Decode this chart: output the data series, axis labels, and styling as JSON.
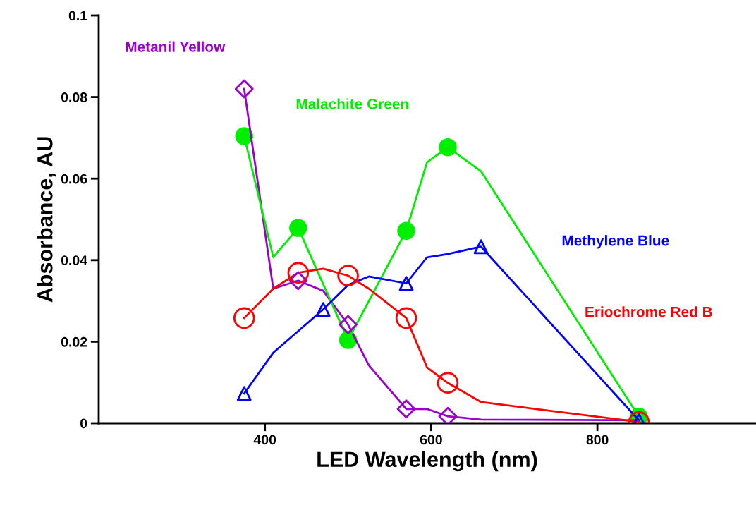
{
  "chart_data": {
    "type": "line",
    "xlabel": "LED Wavelength (nm)",
    "ylabel": "Absorbance, AU",
    "xlim": [
      200,
      990
    ],
    "ylim": [
      0,
      0.1
    ],
    "xticks": [
      400,
      600,
      800
    ],
    "yticks": [
      {
        "value": 0,
        "label": "0"
      },
      0.02,
      0.04,
      0.06,
      0.08,
      0.1
    ],
    "grid": false,
    "legend": false,
    "series": [
      {
        "name": "Metanil Yellow",
        "color": "#9900cc",
        "x": [
          375,
          410,
          440,
          470,
          500,
          525,
          570,
          595,
          620,
          660,
          850
        ],
        "values": [
          0.082,
          0.033,
          0.035,
          0.0325,
          0.0242,
          0.0142,
          0.0035,
          0.0035,
          0.0017,
          0.0009,
          0.0007
        ],
        "marker": "none"
      },
      {
        "name": "Malachite Green",
        "color": "#00ee00",
        "x": [
          375,
          410,
          440,
          500,
          570,
          595,
          620,
          660,
          850
        ],
        "values": [
          0.0704,
          0.0407,
          0.0479,
          0.0204,
          0.0472,
          0.064,
          0.0677,
          0.0618,
          0.0016
        ],
        "marker": "none"
      },
      {
        "name": "Methylene Blue",
        "color": "#0000ff",
        "x": [
          375,
          410,
          470,
          500,
          525,
          570,
          595,
          620,
          660,
          850
        ],
        "values": [
          0.0073,
          0.0173,
          0.0279,
          0.0339,
          0.036,
          0.0343,
          0.0407,
          0.0415,
          0.0433,
          0.0007
        ],
        "marker": "none"
      },
      {
        "name": "Eriochrome Red B",
        "color": "#ff0000",
        "x": [
          375,
          410,
          440,
          470,
          500,
          525,
          570,
          595,
          620,
          660,
          850
        ],
        "values": [
          0.0258,
          0.033,
          0.0369,
          0.0379,
          0.0362,
          0.033,
          0.0258,
          0.0137,
          0.0099,
          0.0052,
          0.0003
        ],
        "marker": "none"
      },
      {
        "type": "scatter",
        "color": "#9900cc",
        "marker": "diamond",
        "x": [
          375,
          440,
          500,
          570,
          620
        ],
        "values": [
          0.082,
          0.035,
          0.0242,
          0.0035,
          0.0017
        ]
      },
      {
        "type": "scatter",
        "color": "#00ee00",
        "marker": "circle",
        "x": [
          375,
          440,
          500,
          570,
          620,
          850
        ],
        "values": [
          0.0704,
          0.0479,
          0.0204,
          0.0472,
          0.0677,
          0.0016
        ]
      },
      {
        "type": "scatter",
        "color": "#0000ff",
        "marker": "triangle",
        "x": [
          375,
          470,
          570,
          660,
          850
        ],
        "values": [
          0.0073,
          0.0279,
          0.0343,
          0.0433,
          0.0007
        ]
      },
      {
        "type": "scatter",
        "color": "#ff0000",
        "marker": "circle",
        "x": [
          375,
          440,
          500,
          570,
          620,
          850
        ],
        "values": [
          0.0258,
          0.0369,
          0.0362,
          0.0258,
          0.0099,
          0.0003
        ]
      }
    ]
  }
}
